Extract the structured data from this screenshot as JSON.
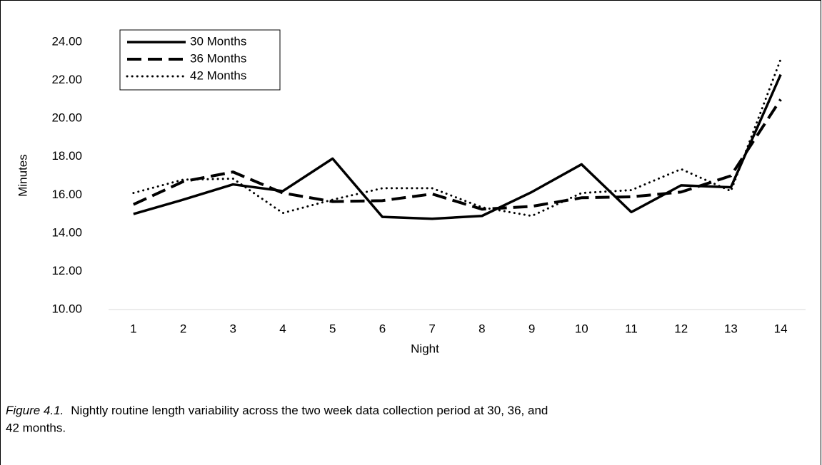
{
  "chart_data": {
    "type": "line",
    "x_label": "Night",
    "y_label": "Minutes",
    "categories": [
      "1",
      "2",
      "3",
      "4",
      "5",
      "6",
      "7",
      "8",
      "9",
      "10",
      "11",
      "12",
      "13",
      "14"
    ],
    "series": [
      {
        "name": "30 Months",
        "color": "#000000",
        "dash": "solid",
        "values": [
          15.0,
          15.75,
          16.55,
          16.2,
          17.9,
          14.85,
          14.75,
          14.9,
          16.15,
          17.6,
          15.1,
          16.5,
          16.4,
          22.3
        ]
      },
      {
        "name": "36 Months",
        "color": "#000000",
        "dash": "dashed",
        "values": [
          15.5,
          16.7,
          17.2,
          16.1,
          15.65,
          15.7,
          16.05,
          15.25,
          15.4,
          15.85,
          15.9,
          16.15,
          17.0,
          21.0
        ]
      },
      {
        "name": "42 Months",
        "color": "#000000",
        "dash": "dotted",
        "values": [
          16.1,
          16.8,
          16.85,
          15.05,
          15.75,
          16.35,
          16.35,
          15.35,
          14.9,
          16.1,
          16.25,
          17.35,
          16.2,
          23.1
        ]
      }
    ],
    "ylim": [
      10,
      24
    ],
    "yticks": [
      {
        "value": 10,
        "label": "10.00"
      },
      {
        "value": 12,
        "label": "12.00"
      },
      {
        "value": 14,
        "label": "14.00"
      },
      {
        "value": 16,
        "label": "16.00"
      },
      {
        "value": 18,
        "label": "18.00"
      },
      {
        "value": 20,
        "label": "20.00"
      },
      {
        "value": 22,
        "label": "22.00"
      },
      {
        "value": 24,
        "label": "24.00"
      }
    ],
    "legend": "upper left",
    "caption_label": "Figure 4.1.",
    "caption": "Nightly routine length variability across the two week data collection period at 30, 36, and",
    "caption_line2": "42 months."
  }
}
